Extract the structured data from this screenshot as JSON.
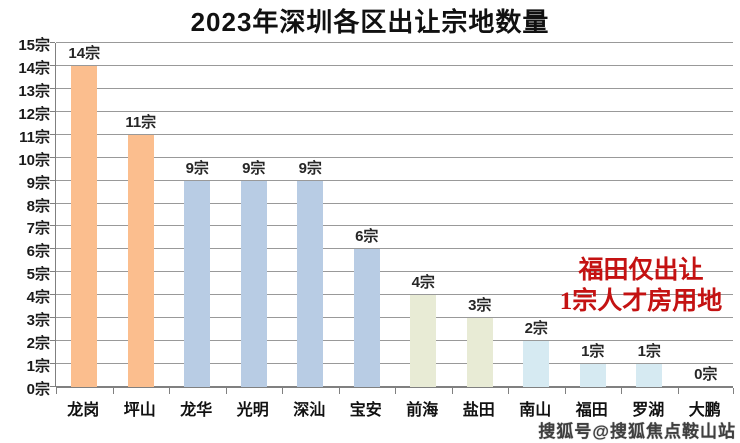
{
  "title": "2023年深圳各区出让宗地数量",
  "chart_data": {
    "type": "bar",
    "title": "2023年深圳各区出让宗地数量",
    "categories": [
      "龙岗",
      "坪山",
      "龙华",
      "光明",
      "深汕",
      "宝安",
      "前海",
      "盐田",
      "南山",
      "福田",
      "罗湖",
      "大鹏"
    ],
    "values": [
      14,
      11,
      9,
      9,
      9,
      6,
      4,
      3,
      2,
      1,
      1,
      0
    ],
    "data_labels": [
      "14宗",
      "11宗",
      "9宗",
      "9宗",
      "9宗",
      "6宗",
      "4宗",
      "3宗",
      "2宗",
      "1宗",
      "1宗",
      "0宗"
    ],
    "bar_colors": [
      "#FBBE8E",
      "#FBBE8E",
      "#B8CCE4",
      "#B8CCE4",
      "#B8CCE4",
      "#B8CCE4",
      "#E8EBD5",
      "#E8EBD5",
      "#D6EAF2",
      "#D6EAF2",
      "#D6EAF2",
      "#D6EAF2"
    ],
    "xlabel": "",
    "ylabel": "",
    "ylim": [
      0,
      15
    ],
    "ytick_step": 1,
    "ytick_suffix": "宗",
    "grid": true,
    "legend": false
  },
  "annotation": {
    "line1": "福田仅出让",
    "line2": "1宗人才房用地",
    "color": "#c41212"
  },
  "watermark": "搜狐号@搜狐焦点鞍山站"
}
